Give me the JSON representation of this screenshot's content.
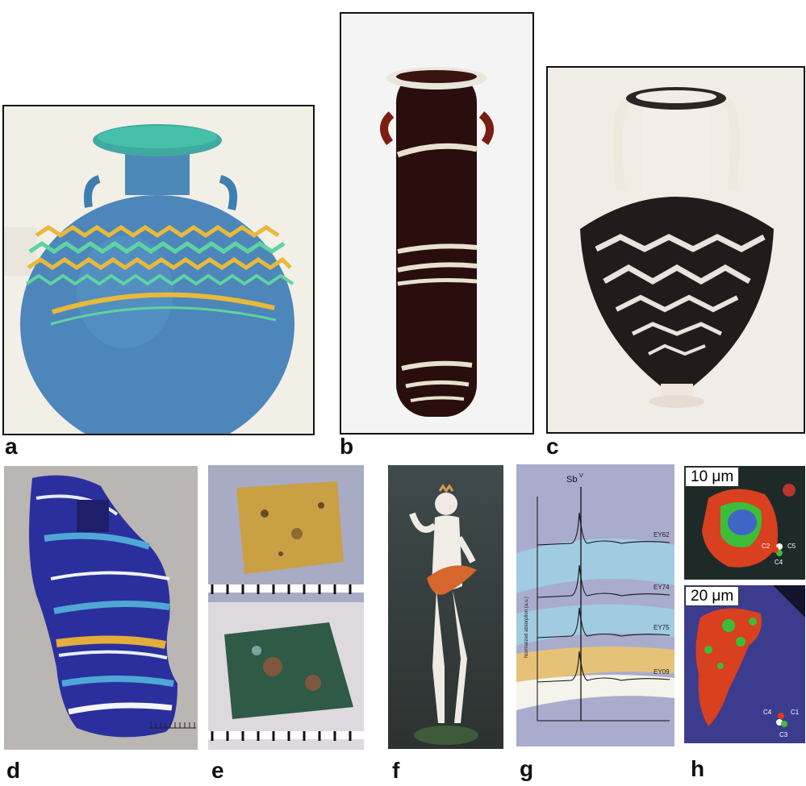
{
  "panels": [
    {
      "letter": "a"
    },
    {
      "letter": "b"
    },
    {
      "letter": "c"
    },
    {
      "letter": "d"
    },
    {
      "letter": "e"
    },
    {
      "letter": "f"
    },
    {
      "letter": "g"
    },
    {
      "letter": "h"
    }
  ],
  "spectrum": {
    "title": "Sb",
    "title_superscript": "V",
    "ylabel": "Normalized absorption (a.u.)",
    "series": [
      "EY62",
      "EY74",
      "EY75",
      "EY09"
    ]
  },
  "scalebars": [
    "10 μm",
    "20 μm"
  ],
  "point_labels": {
    "top": [
      "C2",
      "C5",
      "C4"
    ],
    "bottom": [
      "C4",
      "C1",
      "C3"
    ]
  },
  "colors": {
    "blue_glass": "#4f8bbf",
    "amber": "#e8b93a",
    "dark_glass": "#2a0e0d",
    "background_grey": "#b9b6b3",
    "map_red": "#e03a1e",
    "map_green": "#3dbd3a"
  }
}
